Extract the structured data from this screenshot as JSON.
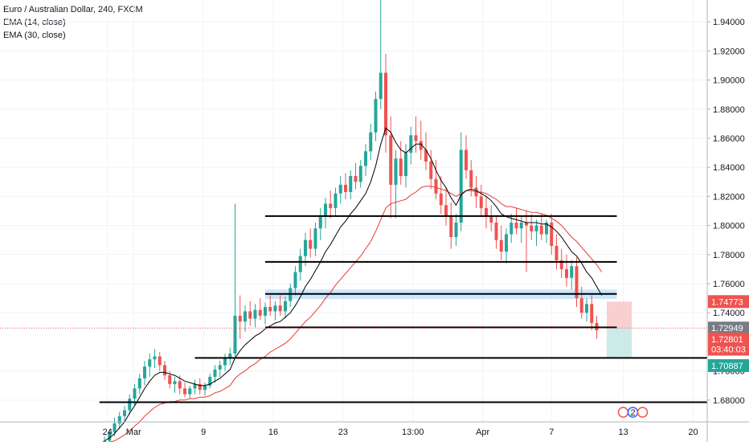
{
  "legend": {
    "symbol": "Euro / Australian Dollar, 240, FXCM",
    "ema14": "EMA (14, close)",
    "ema30": "EMA (30, close)"
  },
  "colors": {
    "up": "#26a69a",
    "down": "#ef5350",
    "ema14": "#000000",
    "ema30": "#e53935",
    "zone": "#bbdefb",
    "stop_zone": "#f8c3c3",
    "target_zone": "#bfe6e2",
    "current_line": "#ef5350"
  },
  "chart_data": {
    "type": "candlestick",
    "title": "Euro / Australian Dollar, 240, FXCM",
    "ylim": [
      1.665,
      1.955
    ],
    "y_ticks": [
      "1.94000",
      "1.92000",
      "1.90000",
      "1.88000",
      "1.86000",
      "1.84000",
      "1.82000",
      "1.80000",
      "1.78000",
      "1.76000",
      "1.74000",
      "1.70000",
      "1.68000"
    ],
    "x_ticks": [
      {
        "label": "24",
        "x": 0.6
      },
      {
        "label": "Mar",
        "x": 5.8
      },
      {
        "label": "9",
        "x": 19.7
      },
      {
        "label": "16",
        "x": 33.6
      },
      {
        "label": "23",
        "x": 47.5
      },
      {
        "label": "13:00",
        "x": 61.4
      },
      {
        "label": "Apr",
        "x": 75.3
      },
      {
        "label": "7",
        "x": 89.0
      },
      {
        "label": "13",
        "x": 103.3
      },
      {
        "label": "20",
        "x": 117.2
      }
    ],
    "candles": [
      [
        0,
        1.651,
        1.655,
        1.648,
        1.652
      ],
      [
        1,
        1.652,
        1.66,
        1.65,
        1.658
      ],
      [
        2,
        1.658,
        1.668,
        1.655,
        1.664
      ],
      [
        3,
        1.664,
        1.672,
        1.66,
        1.669
      ],
      [
        4,
        1.669,
        1.676,
        1.665,
        1.673
      ],
      [
        5,
        1.673,
        1.684,
        1.67,
        1.681
      ],
      [
        6,
        1.681,
        1.691,
        1.676,
        1.688
      ],
      [
        7,
        1.688,
        1.698,
        1.684,
        1.695
      ],
      [
        8,
        1.695,
        1.707,
        1.69,
        1.703
      ],
      [
        9,
        1.703,
        1.712,
        1.696,
        1.708
      ],
      [
        10,
        1.708,
        1.715,
        1.702,
        1.71
      ],
      [
        11,
        1.71,
        1.713,
        1.7,
        1.704
      ],
      [
        12,
        1.704,
        1.707,
        1.694,
        1.697
      ],
      [
        13,
        1.697,
        1.7,
        1.688,
        1.691
      ],
      [
        14,
        1.691,
        1.696,
        1.685,
        1.693
      ],
      [
        15,
        1.693,
        1.697,
        1.684,
        1.688
      ],
      [
        16,
        1.688,
        1.692,
        1.682,
        1.684
      ],
      [
        17,
        1.684,
        1.69,
        1.681,
        1.688
      ],
      [
        18,
        1.688,
        1.694,
        1.684,
        1.691
      ],
      [
        19,
        1.691,
        1.695,
        1.684,
        1.687
      ],
      [
        20,
        1.687,
        1.692,
        1.683,
        1.69
      ],
      [
        21,
        1.69,
        1.698,
        1.688,
        1.696
      ],
      [
        22,
        1.696,
        1.704,
        1.692,
        1.701
      ],
      [
        23,
        1.701,
        1.707,
        1.696,
        1.704
      ],
      [
        24,
        1.704,
        1.712,
        1.7,
        1.709
      ],
      [
        25,
        1.709,
        1.716,
        1.704,
        1.712
      ],
      [
        26,
        1.712,
        1.815,
        1.71,
        1.738
      ],
      [
        27,
        1.738,
        1.752,
        1.722,
        1.734
      ],
      [
        28,
        1.734,
        1.745,
        1.727,
        1.741
      ],
      [
        29,
        1.741,
        1.748,
        1.731,
        1.736
      ],
      [
        30,
        1.736,
        1.746,
        1.73,
        1.742
      ],
      [
        31,
        1.742,
        1.75,
        1.735,
        1.738
      ],
      [
        32,
        1.738,
        1.747,
        1.732,
        1.744
      ],
      [
        33,
        1.744,
        1.752,
        1.738,
        1.741
      ],
      [
        34,
        1.741,
        1.748,
        1.735,
        1.745
      ],
      [
        35,
        1.745,
        1.752,
        1.738,
        1.741
      ],
      [
        36,
        1.741,
        1.751,
        1.736,
        1.748
      ],
      [
        37,
        1.748,
        1.76,
        1.744,
        1.757
      ],
      [
        38,
        1.757,
        1.772,
        1.752,
        1.768
      ],
      [
        39,
        1.768,
        1.784,
        1.762,
        1.779
      ],
      [
        40,
        1.779,
        1.795,
        1.772,
        1.79
      ],
      [
        41,
        1.79,
        1.798,
        1.778,
        1.784
      ],
      [
        42,
        1.784,
        1.802,
        1.779,
        1.798
      ],
      [
        43,
        1.798,
        1.812,
        1.79,
        1.806
      ],
      [
        44,
        1.806,
        1.819,
        1.798,
        1.815
      ],
      [
        45,
        1.815,
        1.824,
        1.805,
        1.812
      ],
      [
        46,
        1.812,
        1.826,
        1.807,
        1.822
      ],
      [
        47,
        1.822,
        1.834,
        1.815,
        1.828
      ],
      [
        48,
        1.828,
        1.836,
        1.818,
        1.823
      ],
      [
        49,
        1.823,
        1.838,
        1.818,
        1.834
      ],
      [
        50,
        1.834,
        1.843,
        1.825,
        1.83
      ],
      [
        51,
        1.83,
        1.845,
        1.826,
        1.841
      ],
      [
        52,
        1.841,
        1.856,
        1.834,
        1.851
      ],
      [
        53,
        1.851,
        1.87,
        1.845,
        1.864
      ],
      [
        54,
        1.864,
        1.892,
        1.858,
        1.887
      ],
      [
        55,
        1.887,
        1.955,
        1.88,
        1.905
      ],
      [
        56,
        1.905,
        1.918,
        1.85,
        1.862
      ],
      [
        57,
        1.862,
        1.875,
        1.805,
        1.828
      ],
      [
        58,
        1.828,
        1.852,
        1.805,
        1.846
      ],
      [
        59,
        1.846,
        1.858,
        1.828,
        1.834
      ],
      [
        60,
        1.834,
        1.856,
        1.826,
        1.85
      ],
      [
        61,
        1.85,
        1.868,
        1.842,
        1.862
      ],
      [
        62,
        1.862,
        1.875,
        1.85,
        1.858
      ],
      [
        63,
        1.858,
        1.872,
        1.845,
        1.852
      ],
      [
        64,
        1.852,
        1.864,
        1.838,
        1.844
      ],
      [
        65,
        1.844,
        1.852,
        1.825,
        1.832
      ],
      [
        66,
        1.832,
        1.845,
        1.818,
        1.822
      ],
      [
        67,
        1.822,
        1.834,
        1.808,
        1.814
      ],
      [
        68,
        1.814,
        1.826,
        1.8,
        1.806
      ],
      [
        69,
        1.806,
        1.816,
        1.784,
        1.792
      ],
      [
        70,
        1.792,
        1.808,
        1.786,
        1.802
      ],
      [
        71,
        1.802,
        1.864,
        1.796,
        1.852
      ],
      [
        72,
        1.852,
        1.862,
        1.832,
        1.838
      ],
      [
        73,
        1.838,
        1.845,
        1.82,
        1.826
      ],
      [
        74,
        1.826,
        1.834,
        1.812,
        1.82
      ],
      [
        75,
        1.82,
        1.828,
        1.806,
        1.812
      ],
      [
        76,
        1.812,
        1.82,
        1.798,
        1.806
      ],
      [
        77,
        1.806,
        1.814,
        1.796,
        1.802
      ],
      [
        78,
        1.802,
        1.806,
        1.784,
        1.79
      ],
      [
        79,
        1.79,
        1.8,
        1.776,
        1.782
      ],
      [
        80,
        1.782,
        1.798,
        1.774,
        1.794
      ],
      [
        81,
        1.794,
        1.808,
        1.788,
        1.802
      ],
      [
        82,
        1.802,
        1.812,
        1.794,
        1.798
      ],
      [
        83,
        1.798,
        1.806,
        1.788,
        1.802
      ],
      [
        84,
        1.802,
        1.81,
        1.768,
        1.8
      ],
      [
        85,
        1.8,
        1.808,
        1.79,
        1.796
      ],
      [
        86,
        1.796,
        1.804,
        1.786,
        1.8
      ],
      [
        87,
        1.8,
        1.808,
        1.79,
        1.794
      ],
      [
        88,
        1.794,
        1.804,
        1.788,
        1.802
      ],
      [
        89,
        1.802,
        1.808,
        1.78,
        1.786
      ],
      [
        90,
        1.786,
        1.794,
        1.77,
        1.776
      ],
      [
        91,
        1.776,
        1.784,
        1.764,
        1.77
      ],
      [
        92,
        1.77,
        1.78,
        1.758,
        1.764
      ],
      [
        93,
        1.764,
        1.776,
        1.756,
        1.772
      ],
      [
        94,
        1.772,
        1.778,
        1.744,
        1.75
      ],
      [
        95,
        1.75,
        1.758,
        1.736,
        1.74
      ],
      [
        96,
        1.74,
        1.75,
        1.734,
        1.746
      ],
      [
        97,
        1.746,
        1.752,
        1.728,
        1.733
      ],
      [
        98,
        1.733,
        1.738,
        1.722,
        1.728
      ]
    ],
    "ema14": [
      1.652,
      1.654,
      1.657,
      1.661,
      1.665,
      1.671,
      1.676,
      1.682,
      1.688,
      1.693,
      1.697,
      1.699,
      1.699,
      1.698,
      1.697,
      1.695,
      1.693,
      1.692,
      1.691,
      1.69,
      1.69,
      1.691,
      1.693,
      1.695,
      1.698,
      1.701,
      1.709,
      1.714,
      1.718,
      1.721,
      1.724,
      1.726,
      1.729,
      1.731,
      1.733,
      1.734,
      1.737,
      1.74,
      1.745,
      1.751,
      1.758,
      1.763,
      1.769,
      1.775,
      1.782,
      1.787,
      1.793,
      1.799,
      1.803,
      1.808,
      1.812,
      1.817,
      1.822,
      1.83,
      1.841,
      1.856,
      1.867,
      1.864,
      1.857,
      1.852,
      1.85,
      1.853,
      1.856,
      1.856,
      1.852,
      1.846,
      1.838,
      1.831,
      1.826,
      1.819,
      1.814,
      1.821,
      1.824,
      1.825,
      1.824,
      1.822,
      1.82,
      1.817,
      1.813,
      1.808,
      1.806,
      1.805,
      1.804,
      1.803,
      1.802,
      1.802,
      1.802,
      1.801,
      1.801,
      1.799,
      1.796,
      1.792,
      1.787,
      1.782,
      1.779,
      1.774,
      1.768,
      1.764,
      1.758,
      1.752
    ],
    "ema30": [
      1.65,
      1.651,
      1.652,
      1.654,
      1.656,
      1.659,
      1.662,
      1.665,
      1.669,
      1.672,
      1.675,
      1.677,
      1.678,
      1.679,
      1.679,
      1.68,
      1.68,
      1.681,
      1.681,
      1.682,
      1.682,
      1.683,
      1.685,
      1.686,
      1.688,
      1.69,
      1.695,
      1.698,
      1.7,
      1.703,
      1.705,
      1.708,
      1.71,
      1.713,
      1.715,
      1.717,
      1.719,
      1.722,
      1.726,
      1.73,
      1.734,
      1.737,
      1.741,
      1.745,
      1.75,
      1.754,
      1.759,
      1.763,
      1.767,
      1.771,
      1.775,
      1.779,
      1.784,
      1.789,
      1.796,
      1.804,
      1.812,
      1.815,
      1.816,
      1.817,
      1.818,
      1.821,
      1.823,
      1.826,
      1.827,
      1.827,
      1.826,
      1.825,
      1.824,
      1.822,
      1.82,
      1.822,
      1.824,
      1.824,
      1.823,
      1.823,
      1.822,
      1.82,
      1.818,
      1.815,
      1.813,
      1.813,
      1.812,
      1.811,
      1.81,
      1.809,
      1.809,
      1.808,
      1.807,
      1.805,
      1.803,
      1.8,
      1.796,
      1.792,
      1.789,
      1.785,
      1.781,
      1.777,
      1.773,
      1.768
    ],
    "hlines": [
      {
        "y": 1.8065,
        "x0": 32,
        "x1": 102
      },
      {
        "y": 1.775,
        "x0": 32,
        "x1": 102
      },
      {
        "y": 1.753,
        "x0": 32,
        "x1": 102
      },
      {
        "y": 1.73,
        "x0": 32,
        "x1": 102
      },
      {
        "y": 1.709,
        "x0": 18,
        "x1": 132
      },
      {
        "y": 1.6785,
        "x0": -1,
        "x1": 132
      }
    ],
    "zone": {
      "y0": 1.7495,
      "y1": 1.756,
      "x0": 32,
      "x1": 102
    },
    "position": {
      "x0": 100,
      "x1": 105,
      "entry": 1.7295,
      "stop": 1.7477,
      "target": 1.7089
    },
    "current_price_line": 1.7295,
    "price_badges": [
      {
        "text": "1.74773",
        "y": 1.7477,
        "color": "#ef5350"
      },
      {
        "text": "1.72949",
        "y": 1.7295,
        "color": "#787b86"
      },
      {
        "text": "1.72801",
        "y": 1.722,
        "color": "#ef5350"
      },
      {
        "text": "03:40:03",
        "y": 1.715,
        "color": "#ef5350"
      },
      {
        "text": "1.70887",
        "y": 1.7037,
        "color": "#26a69a"
      }
    ],
    "event_markers": [
      {
        "label": "2",
        "x": 105.2
      }
    ]
  }
}
